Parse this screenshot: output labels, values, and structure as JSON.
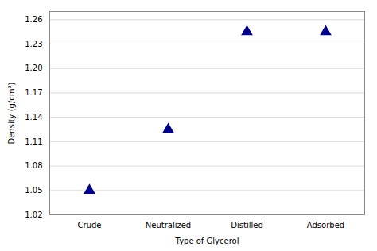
{
  "chart_data": {
    "type": "scatter",
    "categories": [
      "Crude",
      "Neutralized",
      "Distilled",
      "Adsorbed"
    ],
    "values": [
      1.05,
      1.125,
      1.245,
      1.245
    ],
    "marker": "triangle",
    "color": "#00008B",
    "xlabel": "Type of Glycerol",
    "ylabel": "Density (g/cm³)",
    "ylim": [
      1.02,
      1.27
    ],
    "yticks": [
      1.02,
      1.05,
      1.08,
      1.11,
      1.14,
      1.17,
      {
        "value": 1.2,
        "label": "1.20"
      },
      1.23,
      1.26
    ],
    "grid": true
  }
}
